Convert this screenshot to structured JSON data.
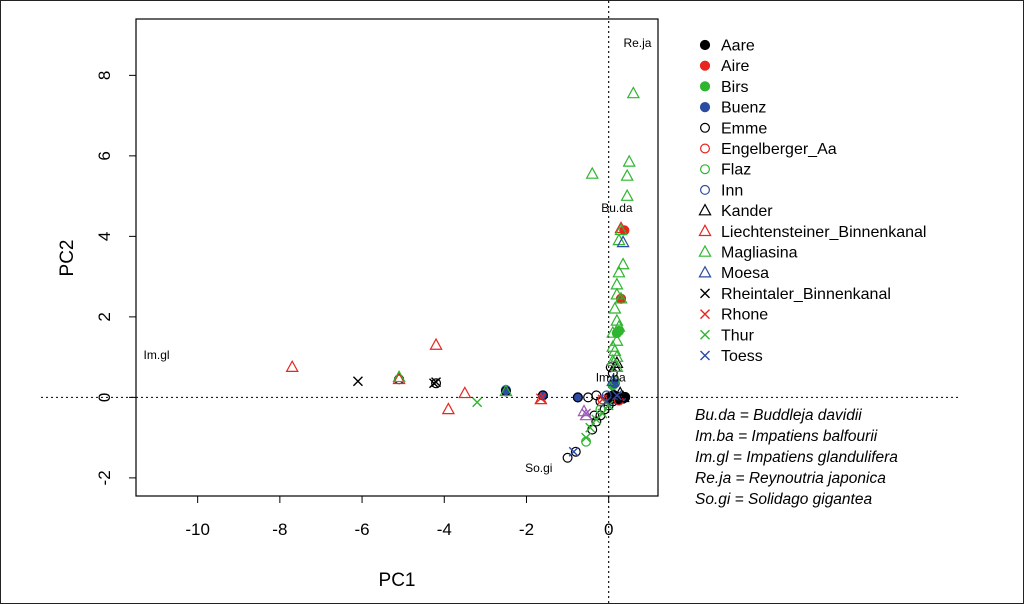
{
  "chart_data": {
    "type": "scatter",
    "xlabel": "PC1",
    "ylabel": "PC2",
    "xlim": [
      -11.5,
      1.2
    ],
    "ylim": [
      -2.45,
      9.4
    ],
    "x_ticks": [
      -10,
      -8,
      -6,
      -4,
      -2,
      0
    ],
    "y_ticks": [
      -2,
      0,
      2,
      4,
      6,
      8
    ],
    "reference_lines": {
      "x": 0,
      "y": 0,
      "style": "dotted"
    },
    "legend_placement": "right, outside plot",
    "colors": {
      "black": "#000000",
      "red": "#e8251f",
      "green": "#2fb52f",
      "blue": "#2c4ba3",
      "purple": "#9b59b6"
    },
    "series": [
      {
        "name": "Aare",
        "marker": "filled-circle",
        "color": "black",
        "points": [
          [
            0.1,
            0.0
          ],
          [
            0.15,
            -0.02
          ],
          [
            0.2,
            0.02
          ],
          [
            0.25,
            -0.01
          ],
          [
            0.3,
            0.0
          ],
          [
            0.35,
            -0.03
          ],
          [
            0.4,
            0.01
          ],
          [
            0.05,
            -0.05
          ],
          [
            0.0,
            0.0
          ],
          [
            0.12,
            0.06
          ],
          [
            0.22,
            -0.06
          ]
        ]
      },
      {
        "name": "Aire",
        "marker": "filled-circle",
        "color": "red",
        "points": [
          [
            0.38,
            4.15
          ],
          [
            0.3,
            2.45
          ]
        ]
      },
      {
        "name": "Birs",
        "marker": "filled-circle",
        "color": "green",
        "points": [
          [
            0.2,
            1.6
          ],
          [
            0.25,
            1.65
          ],
          [
            0.1,
            0.3
          ]
        ]
      },
      {
        "name": "Buenz",
        "marker": "filled-circle",
        "color": "blue",
        "points": [
          [
            -1.6,
            0.05
          ],
          [
            -0.75,
            0.0
          ],
          [
            0.15,
            0.35
          ],
          [
            -2.5,
            0.18
          ]
        ]
      },
      {
        "name": "Emme",
        "marker": "open-circle",
        "color": "black",
        "points": [
          [
            -1.0,
            -1.5
          ],
          [
            -0.8,
            -1.35
          ],
          [
            -0.4,
            -0.8
          ],
          [
            -0.3,
            -0.6
          ],
          [
            -0.2,
            -0.45
          ],
          [
            -0.1,
            -0.3
          ],
          [
            -0.35,
            -0.45
          ],
          [
            -0.5,
            0.0
          ],
          [
            -0.3,
            0.05
          ],
          [
            -0.2,
            -0.1
          ],
          [
            0.0,
            -0.2
          ],
          [
            0.1,
            -0.1
          ],
          [
            0.05,
            0.02
          ],
          [
            0.4,
            0.0
          ],
          [
            0.05,
            0.75
          ],
          [
            0.1,
            0.6
          ],
          [
            -2.5,
            0.15
          ],
          [
            -1.6,
            0.05
          ],
          [
            -5.1,
            0.45
          ],
          [
            -4.2,
            0.35
          ],
          [
            -0.75,
            0.0
          ]
        ]
      },
      {
        "name": "Engelberger_Aa",
        "marker": "open-circle",
        "color": "red",
        "points": [
          [
            -0.15,
            -0.05
          ],
          [
            0.25,
            -0.08
          ]
        ]
      },
      {
        "name": "Flaz",
        "marker": "open-circle",
        "color": "green",
        "points": [
          [
            -0.55,
            -1.1
          ],
          [
            -0.2,
            -0.3
          ],
          [
            0.15,
            0.4
          ]
        ]
      },
      {
        "name": "Inn",
        "marker": "open-circle",
        "color": "blue",
        "points": [
          [
            -0.05,
            0.05
          ],
          [
            0.3,
            0.0
          ]
        ]
      },
      {
        "name": "Kander",
        "marker": "open-triangle",
        "color": "black",
        "points": [
          [
            0.2,
            0.85
          ],
          [
            0.15,
            0.75
          ],
          [
            0.28,
            0.1
          ],
          [
            0.35,
            0.0
          ]
        ]
      },
      {
        "name": "Liechtensteiner_Binnenkanal",
        "marker": "open-triangle",
        "color": "red",
        "points": [
          [
            -7.7,
            0.75
          ],
          [
            -4.2,
            1.3
          ],
          [
            -3.5,
            0.1
          ],
          [
            -3.9,
            -0.3
          ],
          [
            -5.1,
            0.45
          ],
          [
            -1.65,
            -0.05
          ],
          [
            0.3,
            4.2
          ]
        ]
      },
      {
        "name": "Magliasina",
        "marker": "open-triangle",
        "color": "green",
        "points": [
          [
            0.6,
            7.55
          ],
          [
            -0.4,
            5.55
          ],
          [
            0.5,
            5.85
          ],
          [
            0.45,
            5.5
          ],
          [
            0.45,
            5.0
          ],
          [
            0.3,
            4.15
          ],
          [
            0.25,
            3.9
          ],
          [
            0.35,
            3.3
          ],
          [
            0.25,
            3.1
          ],
          [
            0.2,
            2.8
          ],
          [
            0.2,
            2.55
          ],
          [
            0.3,
            2.45
          ],
          [
            0.15,
            2.2
          ],
          [
            0.2,
            1.9
          ],
          [
            0.25,
            1.75
          ],
          [
            0.1,
            1.6
          ],
          [
            0.2,
            1.4
          ],
          [
            0.1,
            1.25
          ],
          [
            0.15,
            1.15
          ],
          [
            0.2,
            1.0
          ],
          [
            0.1,
            0.9
          ],
          [
            0.2,
            0.75
          ],
          [
            -5.1,
            0.5
          ],
          [
            -2.5,
            0.15
          ]
        ]
      },
      {
        "name": "Moesa",
        "marker": "open-triangle",
        "color": "blue",
        "points": [
          [
            0.35,
            3.85
          ],
          [
            0.1,
            0.4
          ]
        ]
      },
      {
        "name": "Rheintaler_Binnenkanal",
        "marker": "cross",
        "color": "black",
        "points": [
          [
            -6.1,
            0.4
          ],
          [
            -4.25,
            0.35
          ],
          [
            -4.2,
            0.38
          ]
        ]
      },
      {
        "name": "Rhone",
        "marker": "cross",
        "color": "red",
        "points": [
          [
            -1.65,
            -0.02
          ],
          [
            -0.15,
            -0.05
          ]
        ]
      },
      {
        "name": "Thur",
        "marker": "cross",
        "color": "green",
        "points": [
          [
            -3.2,
            -0.12
          ],
          [
            -0.55,
            -1.0
          ],
          [
            -0.45,
            -0.75
          ],
          [
            -0.3,
            -0.55
          ],
          [
            -0.15,
            -0.4
          ],
          [
            0.0,
            -0.2
          ]
        ]
      },
      {
        "name": "Toess",
        "marker": "cross",
        "color": "blue",
        "points": [
          [
            -0.85,
            -1.35
          ],
          [
            -0.05,
            -0.1
          ],
          [
            0.2,
            0.05
          ]
        ]
      },
      {
        "name": "",
        "marker": "open-triangle",
        "color": "purple",
        "points": [
          [
            -0.6,
            -0.35
          ],
          [
            -0.55,
            -0.45
          ]
        ]
      },
      {
        "name": "",
        "marker": "cross",
        "color": "purple",
        "points": [
          [
            -0.55,
            -0.4
          ]
        ]
      }
    ],
    "annotations": [
      {
        "text": "Re.ja",
        "x": 0.7,
        "y": 8.7
      },
      {
        "text": "Bu.da",
        "x": 0.2,
        "y": 4.6
      },
      {
        "text": "Im.gl",
        "x": -11.0,
        "y": 0.95
      },
      {
        "text": "Im.ba",
        "x": 0.05,
        "y": 0.4
      },
      {
        "text": "So.gi",
        "x": -1.7,
        "y": -1.85
      }
    ],
    "species_key": [
      "Bu.da = Buddleja davidii",
      "Im.ba = Impatiens balfourii",
      "Im.gl = Impatiens glandulifera",
      "Re.ja = Reynoutria japonica",
      "So.gi = Solidago gigantea"
    ]
  }
}
